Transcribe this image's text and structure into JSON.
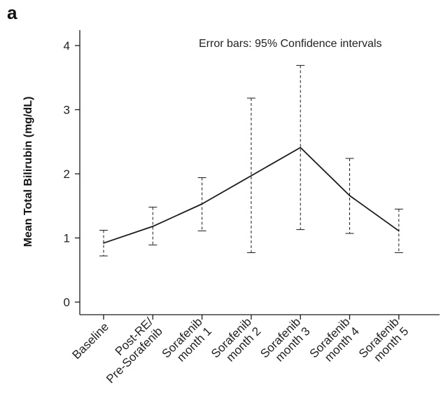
{
  "panel_label": "a",
  "chart_data": {
    "type": "line",
    "title": "",
    "xlabel": "",
    "ylabel": "Mean Total Bilirubin (mg/dL)",
    "annotation": "Error bars: 95% Confidence intervals",
    "categories": [
      [
        "Baseline"
      ],
      [
        "Post-RE/",
        "Pre-Sorafenib"
      ],
      [
        "Sorafenib",
        "month 1"
      ],
      [
        "Sorafenib",
        "month 2"
      ],
      [
        "Sorafenib",
        "month 3"
      ],
      [
        "Sorafenib",
        "month 4"
      ],
      [
        "Sorafenib",
        "month 5"
      ]
    ],
    "series": [
      {
        "values": [
          0.92,
          1.18,
          1.53,
          1.97,
          2.41,
          1.66,
          1.11
        ],
        "ci_lower": [
          0.72,
          0.89,
          1.11,
          0.77,
          1.13,
          1.07,
          0.77
        ],
        "ci_upper": [
          1.12,
          1.48,
          1.94,
          3.18,
          3.69,
          2.24,
          1.45
        ]
      }
    ],
    "yticks": [
      0,
      1,
      2,
      3,
      4
    ],
    "ylim": [
      -0.12,
      4.25
    ],
    "grid": false,
    "colors": {
      "line": "#1a1a1a",
      "error_bar": "#1a1a1a",
      "axis": "#1a1a1a"
    }
  }
}
